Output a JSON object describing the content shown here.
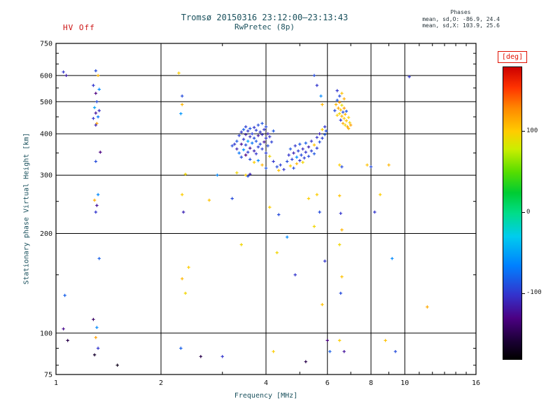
{
  "header": {
    "hv_status": "HV Off",
    "title_line1": "Tromsø 20150316 23:12:00–23:13:43",
    "title_line2": "RwPretec (8p)",
    "phases_label": "Phases",
    "phases_o": "mean, sd,O: -86.9, 24.4",
    "phases_x": "mean, sd,X: 103.9, 25.6"
  },
  "chart_data": {
    "type": "scatter",
    "title": "Tromsø 20150316 23:12:00–23:13:43  RwPretec (8p)",
    "xlabel": "Frequency [MHz]",
    "ylabel": "Stationary phase Virtual Height [km]",
    "x_scale": "log",
    "y_scale": "log",
    "xlim": [
      1,
      16
    ],
    "ylim": [
      75,
      750
    ],
    "x_ticks": [
      "1",
      "2",
      "4",
      "6",
      "8",
      "10",
      "16"
    ],
    "x_tick_values": [
      1,
      2,
      4,
      6,
      8,
      10,
      16
    ],
    "y_ticks": [
      "750",
      "600",
      "500",
      "400",
      "300",
      "200",
      "100",
      "75"
    ],
    "y_tick_values": [
      750,
      600,
      500,
      400,
      300,
      200,
      100,
      75
    ],
    "x_grid": [
      2,
      4,
      6,
      8,
      10
    ],
    "y_grid": [
      100,
      200,
      300,
      400,
      500,
      600
    ],
    "x_minor_ticks": [
      3,
      5,
      7,
      9,
      11,
      12,
      13,
      14,
      15
    ],
    "y_minor_ticks": [
      80,
      90,
      150,
      250,
      350,
      450,
      550,
      650,
      700
    ],
    "grid": true,
    "legend_position": "none",
    "colorbar": {
      "label": "[deg]",
      "ticks": [
        100,
        0,
        -100
      ],
      "range": [
        -180,
        180
      ],
      "accent_color": "#e01000"
    },
    "point_fields": [
      "frequency_mhz",
      "virtual_height_km",
      "phase_deg"
    ],
    "points": [
      [
        1.05,
        615,
        -100
      ],
      [
        1.07,
        600,
        -115
      ],
      [
        1.06,
        130,
        -80
      ],
      [
        1.05,
        103,
        -125
      ],
      [
        1.08,
        95,
        -150
      ],
      [
        1.3,
        620,
        -90
      ],
      [
        1.32,
        600,
        110
      ],
      [
        1.28,
        560,
        -100
      ],
      [
        1.33,
        545,
        -60
      ],
      [
        1.3,
        530,
        -130
      ],
      [
        1.31,
        500,
        -90
      ],
      [
        1.29,
        480,
        -50
      ],
      [
        1.33,
        470,
        -105
      ],
      [
        1.3,
        462,
        -120
      ],
      [
        1.32,
        450,
        -70
      ],
      [
        1.28,
        445,
        -100
      ],
      [
        1.31,
        430,
        120
      ],
      [
        1.3,
        425,
        -110
      ],
      [
        1.34,
        352,
        -130
      ],
      [
        1.3,
        330,
        -90
      ],
      [
        1.32,
        262,
        -60
      ],
      [
        1.29,
        252,
        115
      ],
      [
        1.31,
        243,
        -120
      ],
      [
        1.3,
        232,
        -100
      ],
      [
        1.33,
        168,
        -80
      ],
      [
        1.28,
        110,
        -140
      ],
      [
        1.31,
        104,
        -60
      ],
      [
        1.3,
        97,
        120
      ],
      [
        1.32,
        90,
        -100
      ],
      [
        1.29,
        86,
        -160
      ],
      [
        1.5,
        80,
        -170
      ],
      [
        2.25,
        610,
        100
      ],
      [
        2.3,
        520,
        -90
      ],
      [
        2.3,
        490,
        110
      ],
      [
        2.28,
        460,
        -55
      ],
      [
        2.35,
        302,
        95
      ],
      [
        2.3,
        262,
        100
      ],
      [
        2.32,
        232,
        -110
      ],
      [
        2.4,
        158,
        100
      ],
      [
        2.3,
        146,
        110
      ],
      [
        2.35,
        132,
        95
      ],
      [
        2.28,
        90,
        -80
      ],
      [
        2.6,
        85,
        -150
      ],
      [
        2.75,
        252,
        105
      ],
      [
        2.9,
        300,
        -60
      ],
      [
        3.0,
        85,
        -100
      ],
      [
        3.4,
        185,
        95
      ],
      [
        3.2,
        255,
        -90
      ],
      [
        3.2,
        368,
        -90
      ],
      [
        3.25,
        372,
        -100
      ],
      [
        3.3,
        360,
        -110
      ],
      [
        3.3,
        380,
        -85
      ],
      [
        3.35,
        395,
        -95
      ],
      [
        3.35,
        350,
        -70
      ],
      [
        3.4,
        405,
        -100
      ],
      [
        3.4,
        372,
        -120
      ],
      [
        3.4,
        340,
        -90
      ],
      [
        3.45,
        412,
        -80
      ],
      [
        3.45,
        385,
        -100
      ],
      [
        3.45,
        358,
        -60
      ],
      [
        3.5,
        420,
        -95
      ],
      [
        3.5,
        398,
        -110
      ],
      [
        3.5,
        370,
        -90
      ],
      [
        3.5,
        345,
        -130
      ],
      [
        3.55,
        408,
        -100
      ],
      [
        3.55,
        380,
        -50
      ],
      [
        3.55,
        352,
        -95
      ],
      [
        3.6,
        415,
        -85
      ],
      [
        3.6,
        392,
        -105
      ],
      [
        3.6,
        362,
        -120
      ],
      [
        3.6,
        335,
        -90
      ],
      [
        3.65,
        400,
        -95
      ],
      [
        3.65,
        375,
        -70
      ],
      [
        3.7,
        418,
        -100
      ],
      [
        3.7,
        388,
        -90
      ],
      [
        3.7,
        355,
        -110
      ],
      [
        3.7,
        328,
        100
      ],
      [
        3.75,
        410,
        -95
      ],
      [
        3.75,
        380,
        -85
      ],
      [
        3.75,
        348,
        -100
      ],
      [
        3.8,
        425,
        -90
      ],
      [
        3.8,
        395,
        -115
      ],
      [
        3.8,
        365,
        -95
      ],
      [
        3.8,
        332,
        -60
      ],
      [
        3.85,
        405,
        -100
      ],
      [
        3.85,
        372,
        -90
      ],
      [
        3.9,
        430,
        -85
      ],
      [
        3.9,
        398,
        -105
      ],
      [
        3.9,
        360,
        -95
      ],
      [
        3.9,
        322,
        110
      ],
      [
        3.95,
        412,
        -100
      ],
      [
        3.95,
        378,
        -120
      ],
      [
        4.0,
        420,
        -90
      ],
      [
        4.0,
        388,
        -100
      ],
      [
        4.0,
        350,
        -95
      ],
      [
        4.0,
        315,
        -85
      ],
      [
        4.05,
        400,
        -110
      ],
      [
        4.05,
        368,
        -90
      ],
      [
        4.1,
        392,
        -100
      ],
      [
        4.1,
        342,
        95
      ],
      [
        4.15,
        378,
        -95
      ],
      [
        4.2,
        408,
        -85
      ],
      [
        4.2,
        330,
        -100
      ],
      [
        4.3,
        318,
        -90
      ],
      [
        4.35,
        310,
        105
      ],
      [
        4.4,
        322,
        -95
      ],
      [
        4.5,
        312,
        -100
      ],
      [
        3.5,
        300,
        100
      ],
      [
        3.55,
        298,
        -90
      ],
      [
        3.3,
        305,
        95
      ],
      [
        3.6,
        302,
        -110
      ],
      [
        4.6,
        330,
        -90
      ],
      [
        4.65,
        345,
        -100
      ],
      [
        4.7,
        320,
        100
      ],
      [
        4.7,
        360,
        -85
      ],
      [
        4.75,
        335,
        -95
      ],
      [
        4.8,
        350,
        -110
      ],
      [
        4.8,
        315,
        -90
      ],
      [
        4.85,
        368,
        -100
      ],
      [
        4.9,
        340,
        -60
      ],
      [
        4.9,
        325,
        110
      ],
      [
        4.95,
        355,
        -95
      ],
      [
        5.0,
        332,
        -100
      ],
      [
        5.0,
        372,
        -85
      ],
      [
        5.05,
        345,
        -90
      ],
      [
        5.1,
        360,
        -105
      ],
      [
        5.1,
        328,
        95
      ],
      [
        5.15,
        338,
        -95
      ],
      [
        5.2,
        352,
        -100
      ],
      [
        5.2,
        375,
        -80
      ],
      [
        5.3,
        342,
        -90
      ],
      [
        5.3,
        365,
        -110
      ],
      [
        5.4,
        355,
        -95
      ],
      [
        5.4,
        380,
        -100
      ],
      [
        5.5,
        348,
        -85
      ],
      [
        5.5,
        370,
        105
      ],
      [
        5.6,
        362,
        -95
      ],
      [
        5.6,
        390,
        -100
      ],
      [
        5.7,
        378,
        -90
      ],
      [
        5.7,
        400,
        -110
      ],
      [
        5.8,
        388,
        -95
      ],
      [
        5.8,
        412,
        100
      ],
      [
        5.9,
        398,
        -85
      ],
      [
        5.9,
        420,
        -100
      ],
      [
        5.95,
        408,
        -90
      ],
      [
        5.5,
        600,
        -90
      ],
      [
        5.6,
        560,
        -100
      ],
      [
        5.75,
        520,
        -60
      ],
      [
        5.8,
        490,
        110
      ],
      [
        5.6,
        262,
        100
      ],
      [
        5.7,
        232,
        -90
      ],
      [
        5.5,
        210,
        95
      ],
      [
        5.9,
        165,
        -100
      ],
      [
        5.8,
        122,
        105
      ],
      [
        6.0,
        95,
        -130
      ],
      [
        6.1,
        88,
        -80
      ],
      [
        4.1,
        240,
        100
      ],
      [
        4.35,
        228,
        -90
      ],
      [
        4.6,
        195,
        -60
      ],
      [
        4.3,
        175,
        95
      ],
      [
        4.85,
        150,
        -100
      ],
      [
        5.3,
        255,
        100
      ],
      [
        4.2,
        88,
        100
      ],
      [
        5.2,
        82,
        -150
      ],
      [
        6.3,
        470,
        -90
      ],
      [
        6.35,
        490,
        110
      ],
      [
        6.4,
        455,
        100
      ],
      [
        6.4,
        505,
        -85
      ],
      [
        6.45,
        478,
        115
      ],
      [
        6.5,
        460,
        95
      ],
      [
        6.5,
        498,
        120
      ],
      [
        6.55,
        440,
        -100
      ],
      [
        6.55,
        472,
        105
      ],
      [
        6.6,
        452,
        110
      ],
      [
        6.6,
        488,
        90
      ],
      [
        6.65,
        430,
        115
      ],
      [
        6.65,
        465,
        -90
      ],
      [
        6.7,
        445,
        100
      ],
      [
        6.7,
        478,
        120
      ],
      [
        6.75,
        425,
        95
      ],
      [
        6.75,
        458,
        110
      ],
      [
        6.8,
        438,
        105
      ],
      [
        6.8,
        468,
        -85
      ],
      [
        6.85,
        420,
        115
      ],
      [
        6.9,
        448,
        100
      ],
      [
        6.9,
        415,
        110
      ],
      [
        6.95,
        432,
        95
      ],
      [
        7.0,
        425,
        120
      ],
      [
        6.5,
        520,
        -90
      ],
      [
        6.6,
        530,
        105
      ],
      [
        6.4,
        540,
        -100
      ],
      [
        6.7,
        510,
        115
      ],
      [
        6.5,
        322,
        100
      ],
      [
        6.6,
        318,
        -90
      ],
      [
        6.5,
        260,
        105
      ],
      [
        6.55,
        230,
        -100
      ],
      [
        6.6,
        205,
        110
      ],
      [
        6.5,
        185,
        95
      ],
      [
        6.6,
        148,
        105
      ],
      [
        6.55,
        132,
        -90
      ],
      [
        6.5,
        95,
        100
      ],
      [
        6.7,
        88,
        -120
      ],
      [
        7.8,
        322,
        105
      ],
      [
        8.0,
        318,
        -90
      ],
      [
        8.5,
        262,
        100
      ],
      [
        8.2,
        232,
        -100
      ],
      [
        9.0,
        322,
        110
      ],
      [
        9.2,
        168,
        -60
      ],
      [
        8.8,
        95,
        105
      ],
      [
        9.4,
        88,
        -90
      ],
      [
        10.3,
        595,
        -100
      ],
      [
        11.6,
        120,
        115
      ]
    ]
  }
}
